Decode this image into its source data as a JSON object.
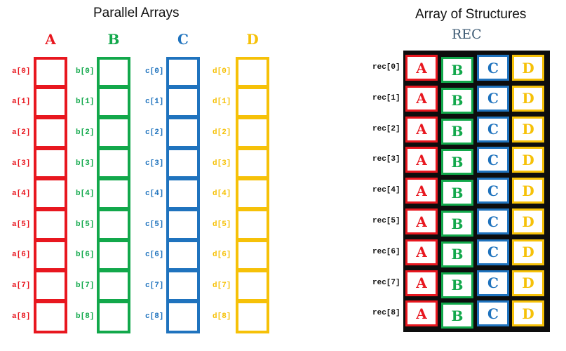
{
  "parallel": {
    "title": "Parallel Arrays",
    "arrays": [
      {
        "key": "a",
        "label": "A",
        "color": "#e8171f",
        "indices": [
          "a[0]",
          "a[1]",
          "a[2]",
          "a[3]",
          "a[4]",
          "a[5]",
          "a[6]",
          "a[7]",
          "a[8]"
        ]
      },
      {
        "key": "b",
        "label": "B",
        "color": "#12a84b",
        "indices": [
          "b[0]",
          "b[1]",
          "b[2]",
          "b[3]",
          "b[4]",
          "b[5]",
          "b[6]",
          "b[7]",
          "b[8]"
        ]
      },
      {
        "key": "c",
        "label": "C",
        "color": "#1f73be",
        "indices": [
          "c[0]",
          "c[1]",
          "c[2]",
          "c[3]",
          "c[4]",
          "c[5]",
          "c[6]",
          "c[7]",
          "c[8]"
        ]
      },
      {
        "key": "d",
        "label": "D",
        "color": "#f6c108",
        "indices": [
          "d[0]",
          "d[1]",
          "d[2]",
          "d[3]",
          "d[4]",
          "d[5]",
          "d[6]",
          "d[7]",
          "d[8]"
        ]
      }
    ]
  },
  "structures": {
    "title": "Array of Structures",
    "subtitle": "REC",
    "fields": [
      {
        "label": "A",
        "color": "#e8171f"
      },
      {
        "label": "B",
        "color": "#12a84b"
      },
      {
        "label": "C",
        "color": "#1f73be"
      },
      {
        "label": "D",
        "color": "#f6c108"
      }
    ],
    "records": [
      "rec[0]",
      "rec[1]",
      "rec[2]",
      "rec[3]",
      "rec[4]",
      "rec[5]",
      "rec[6]",
      "rec[7]",
      "rec[8]"
    ],
    "frame_color": "#0d0d0d"
  }
}
